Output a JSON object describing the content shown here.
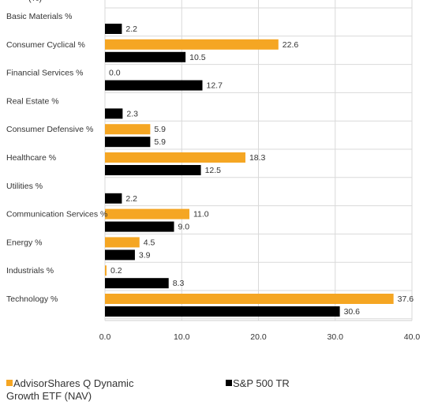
{
  "header": {
    "partial_text": "(%)"
  },
  "chart_data": {
    "type": "bar",
    "orientation": "horizontal",
    "categories": [
      "Basic Materials %",
      "Consumer Cyclical %",
      "Financial Services %",
      "Real Estate %",
      "Consumer Defensive %",
      "Healthcare %",
      "Utilities %",
      "Communication Services %",
      "Energy %",
      "Industrials %",
      "Technology %"
    ],
    "series": [
      {
        "name": "AdvisorShares Q Dynamic Growth ETF (NAV)",
        "color": "#f5a623",
        "values": [
          null,
          22.6,
          0.0,
          null,
          5.9,
          18.3,
          null,
          11.0,
          4.5,
          0.2,
          37.6
        ],
        "labels": [
          "",
          "22.6",
          "0.0",
          "",
          "5.9",
          "18.3",
          "",
          "11.0",
          "4.5",
          "0.2",
          "37.6"
        ]
      },
      {
        "name": "S&P 500 TR",
        "color": "#000000",
        "values": [
          2.2,
          10.5,
          12.7,
          2.3,
          5.9,
          12.5,
          2.2,
          9.0,
          3.9,
          8.3,
          30.6
        ],
        "labels": [
          "2.2",
          "10.5",
          "12.7",
          "2.3",
          "5.9",
          "12.5",
          "2.2",
          "9.0",
          "3.9",
          "8.3",
          "30.6"
        ]
      }
    ],
    "xlim": [
      0,
      40
    ],
    "xticks": [
      0,
      10,
      20,
      30,
      40
    ],
    "xtick_labels": [
      "0.0",
      "10.0",
      "20.0",
      "30.0",
      "40.0"
    ],
    "grid": true,
    "legend_position": "bottom"
  },
  "legend": {
    "items": [
      {
        "label": "AdvisorShares Q Dynamic Growth ETF (NAV)",
        "color": "#f5a623"
      },
      {
        "label": "S&P 500 TR",
        "color": "#000000"
      }
    ]
  }
}
